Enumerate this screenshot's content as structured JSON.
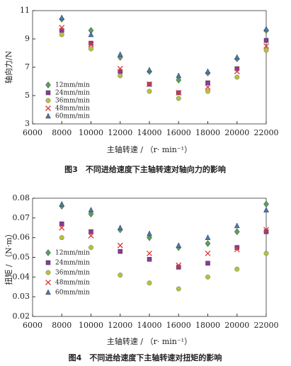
{
  "chart_data": [
    {
      "type": "scatter",
      "ylabel": "轴向力/N",
      "xlabel": "主轴转速 / （r· min⁻¹）",
      "caption": "图3　不同进给速度下主轴转速对轴向力的影响",
      "x": [
        8000,
        10000,
        12000,
        14000,
        16000,
        18000,
        20000,
        22000
      ],
      "xlim": [
        6000,
        22000
      ],
      "xticks": [
        6000,
        8000,
        10000,
        12000,
        14000,
        16000,
        18000,
        20000,
        22000
      ],
      "ylim": [
        3,
        11
      ],
      "yticks": [
        3,
        5,
        7,
        9,
        11
      ],
      "legend": "lower-left",
      "series": [
        {
          "name": "12mm/min",
          "color": "#5aa05a",
          "marker": "diamond",
          "values": [
            10.4,
            9.6,
            7.7,
            6.7,
            6.1,
            6.6,
            7.6,
            9.6
          ]
        },
        {
          "name": "24mm/min",
          "color": "#8a3a9a",
          "marker": "square",
          "values": [
            9.6,
            8.7,
            6.7,
            5.8,
            5.2,
            5.9,
            6.9,
            8.9
          ]
        },
        {
          "name": "36mm/min",
          "color": "#b8c23a",
          "marker": "circle",
          "values": [
            9.3,
            8.3,
            6.4,
            5.3,
            4.8,
            5.3,
            6.3,
            8.2
          ]
        },
        {
          "name": "48mm/min",
          "color": "#e03a3a",
          "marker": "x",
          "values": [
            9.8,
            8.6,
            6.9,
            5.8,
            5.2,
            5.6,
            6.7,
            8.5
          ]
        },
        {
          "name": "60mm/min",
          "color": "#4a78b8",
          "marker": "triangle",
          "values": [
            10.5,
            9.3,
            7.9,
            6.8,
            6.4,
            6.7,
            7.7,
            9.7
          ]
        }
      ]
    },
    {
      "type": "scatter",
      "ylabel": "扭矩 / （N·m）",
      "xlabel": "主轴转速 / （r· min⁻¹）",
      "caption": "图4　不同进给速度下主轴转速对扭矩的影响",
      "x": [
        8000,
        10000,
        12000,
        14000,
        16000,
        18000,
        20000,
        22000
      ],
      "xlim": [
        6000,
        22000
      ],
      "xticks": [
        6000,
        8000,
        10000,
        12000,
        14000,
        16000,
        18000,
        20000,
        22000
      ],
      "ylim": [
        0.02,
        0.08
      ],
      "yticks": [
        0.02,
        0.03,
        0.04,
        0.05,
        0.06,
        0.07,
        0.08
      ],
      "legend": "lower-left",
      "series": [
        {
          "name": "12mm/min",
          "color": "#5aa05a",
          "marker": "diamond",
          "values": [
            0.076,
            0.072,
            0.064,
            0.06,
            0.055,
            0.057,
            0.063,
            0.077
          ]
        },
        {
          "name": "24mm/min",
          "color": "#8a3a9a",
          "marker": "square",
          "values": [
            0.067,
            0.063,
            0.053,
            0.049,
            0.045,
            0.047,
            0.055,
            0.063
          ]
        },
        {
          "name": "36mm/min",
          "color": "#b8c23a",
          "marker": "circle",
          "values": [
            0.06,
            0.055,
            0.041,
            0.037,
            0.034,
            0.04,
            0.044,
            0.052
          ]
        },
        {
          "name": "48mm/min",
          "color": "#e03a3a",
          "marker": "x",
          "values": [
            0.065,
            0.061,
            0.056,
            0.052,
            0.046,
            0.052,
            0.054,
            0.064
          ]
        },
        {
          "name": "60mm/min",
          "color": "#4a78b8",
          "marker": "triangle",
          "values": [
            0.077,
            0.074,
            0.065,
            0.062,
            0.056,
            0.06,
            0.066,
            0.074
          ]
        }
      ]
    }
  ]
}
